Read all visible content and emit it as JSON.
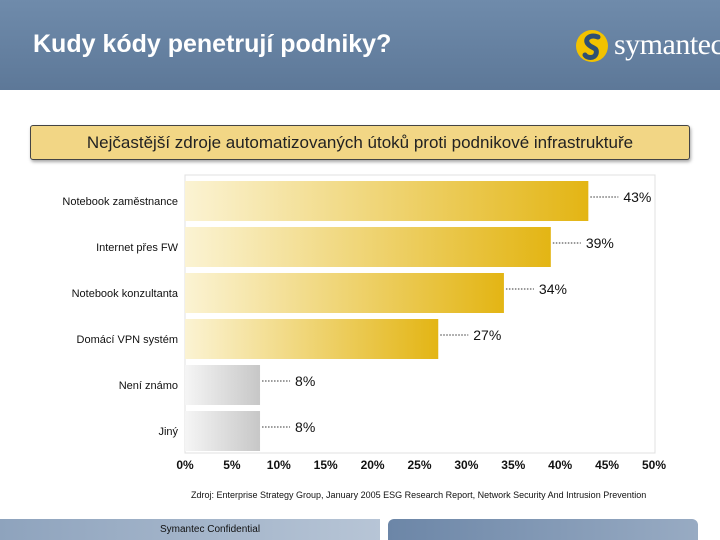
{
  "slide": {
    "title": "Kudy kódy penetrují podniky?",
    "logo_text": "symantec.",
    "footer": "Symantec Confidential",
    "source": "Zdroj: Enterprise Strategy Group, January 2005 ESG Research Report, Network Security And Intrusion Prevention"
  },
  "colors": {
    "header": "#6a87a8",
    "title_box": "#f2d685",
    "bar_gold_dark": "#e3b514",
    "bar_gold_light": "#fbf3d3",
    "bar_gray_dark": "#c7c7c7",
    "bar_gray_light": "#f5f5f5"
  },
  "chart_data": {
    "type": "bar",
    "orientation": "horizontal",
    "title": "Nejčastější zdroje automatizovaných útoků proti podnikové infrastruktuře",
    "categories": [
      "Notebook zaměstnance",
      "Internet přes FW",
      "Notebook konzultanta",
      "Domácí VPN systém",
      "Není známo",
      "Jiný"
    ],
    "values": [
      43,
      39,
      34,
      27,
      8,
      8
    ],
    "value_labels": [
      "43%",
      "39%",
      "34%",
      "27%",
      "8%",
      "8%"
    ],
    "bar_colors": [
      "gold",
      "gold",
      "gold",
      "gold",
      "gray",
      "gray"
    ],
    "x_ticks": [
      0,
      5,
      10,
      15,
      20,
      25,
      30,
      35,
      40,
      45,
      50
    ],
    "x_tick_labels": [
      "0%",
      "5%",
      "10%",
      "15%",
      "20%",
      "25%",
      "30%",
      "35%",
      "40%",
      "45%",
      "50%"
    ],
    "xlim": [
      0,
      50
    ],
    "grid": false
  }
}
